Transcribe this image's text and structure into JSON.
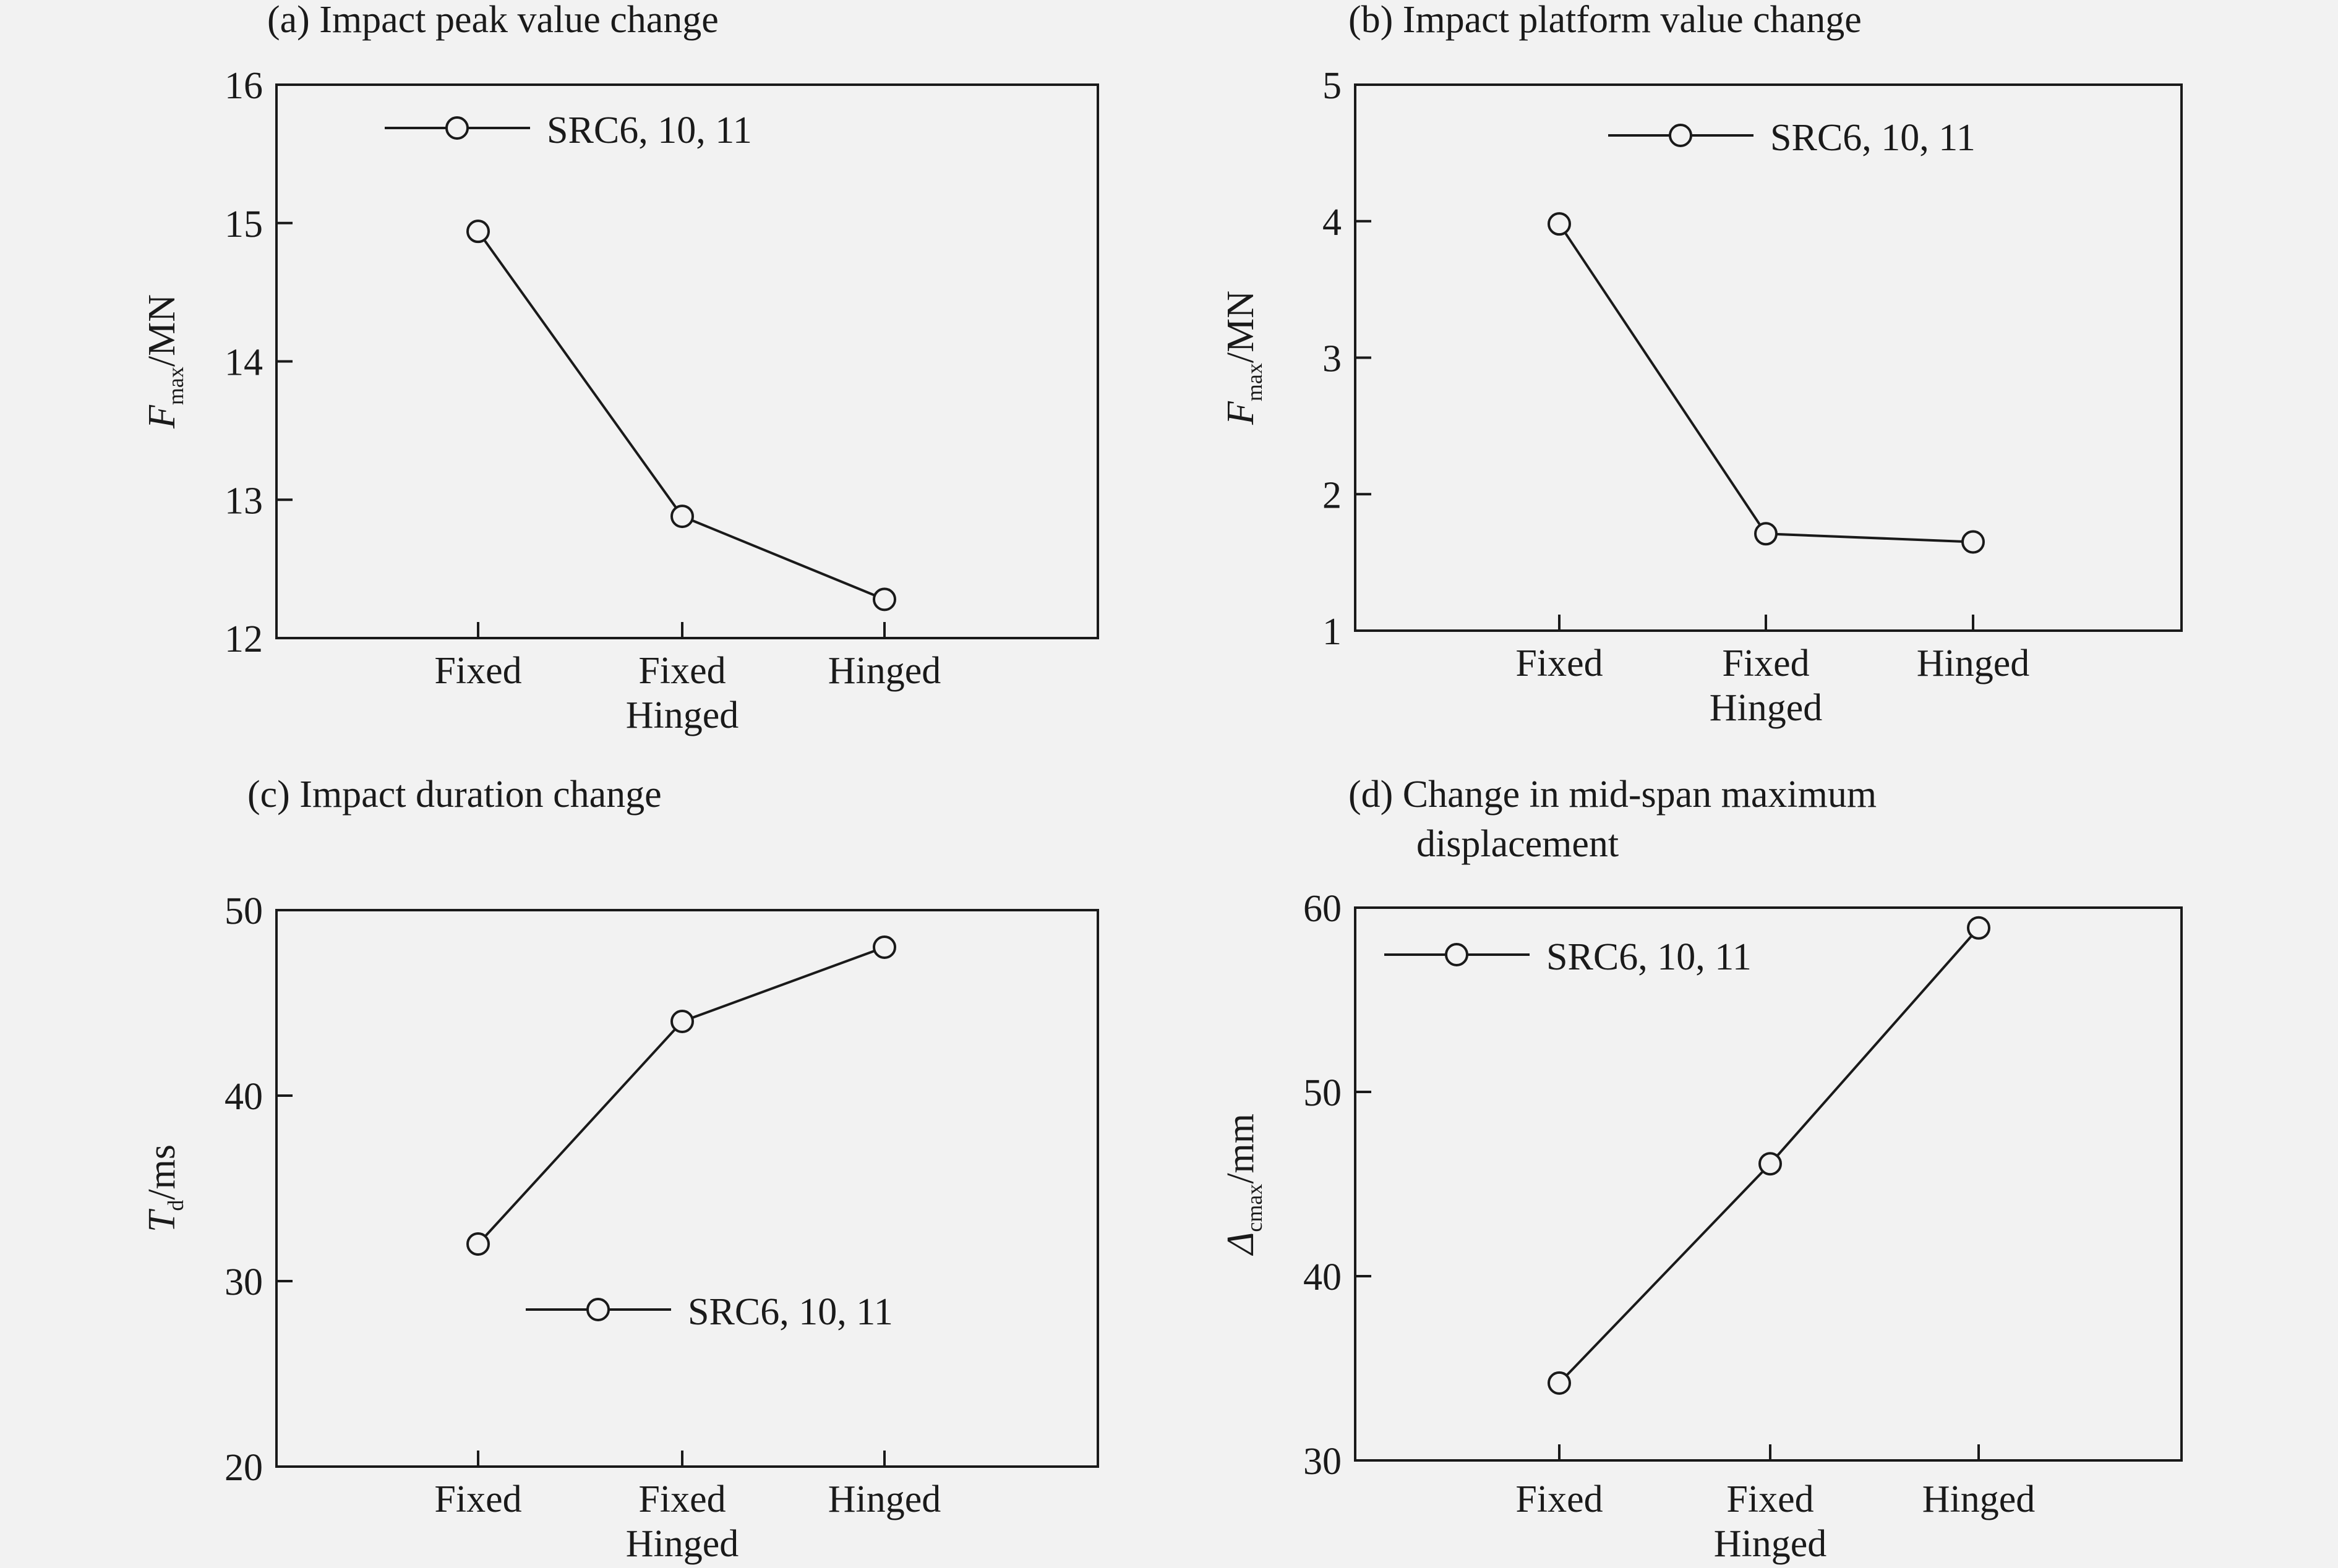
{
  "chart_data": [
    {
      "id": "a",
      "type": "line",
      "title": "(a) Impact peak value change",
      "ylabel": {
        "main": "F",
        "sub": "max",
        "unit": "/MN"
      },
      "categories": [
        [
          "Fixed"
        ],
        [
          "Fixed",
          "Hinged"
        ],
        [
          "Hinged"
        ]
      ],
      "yticks": [
        "12",
        "13",
        "14",
        "15",
        "16"
      ],
      "ylim": [
        12,
        16
      ],
      "series": [
        {
          "name": "SRC6, 10, 11",
          "values": [
            14.94,
            12.88,
            12.28
          ]
        }
      ],
      "legend_position": "top-left"
    },
    {
      "id": "b",
      "type": "line",
      "title": "(b) Impact platform value change",
      "ylabel": {
        "main": "F",
        "sub": "max",
        "unit": "/MN"
      },
      "categories": [
        [
          "Fixed"
        ],
        [
          "Fixed",
          "Hinged"
        ],
        [
          "Hinged"
        ]
      ],
      "yticks": [
        "1",
        "2",
        "3",
        "4",
        "5"
      ],
      "ylim": [
        1,
        5
      ],
      "series": [
        {
          "name": "SRC6, 10, 11",
          "values": [
            3.98,
            1.71,
            1.65
          ]
        }
      ],
      "legend_position": "top-right"
    },
    {
      "id": "c",
      "type": "line",
      "title": "(c) Impact duration change",
      "ylabel": {
        "main": "T",
        "sub": "d",
        "unit": "/ms"
      },
      "categories": [
        [
          "Fixed"
        ],
        [
          "Fixed",
          "Hinged"
        ],
        [
          "Hinged"
        ]
      ],
      "yticks": [
        "20",
        "30",
        "40",
        "50"
      ],
      "ylim": [
        20,
        50
      ],
      "series": [
        {
          "name": "SRC6, 10, 11",
          "values": [
            32.0,
            44.0,
            48.0
          ]
        }
      ],
      "legend_position": "bottom-center"
    },
    {
      "id": "d",
      "type": "line",
      "title": [
        "(d) Change in mid-span maximum",
        "displacement"
      ],
      "ylabel": {
        "main": "Δ",
        "sub": "cmax",
        "unit": "/mm"
      },
      "categories": [
        [
          "Fixed"
        ],
        [
          "Fixed",
          "Hinged"
        ],
        [
          "Hinged"
        ]
      ],
      "yticks": [
        "30",
        "40",
        "50",
        "60"
      ],
      "ylim": [
        30,
        60
      ],
      "series": [
        {
          "name": "SRC6, 10, 11",
          "values": [
            34.2,
            46.1,
            58.9
          ]
        }
      ],
      "legend_position": "top-left"
    }
  ]
}
